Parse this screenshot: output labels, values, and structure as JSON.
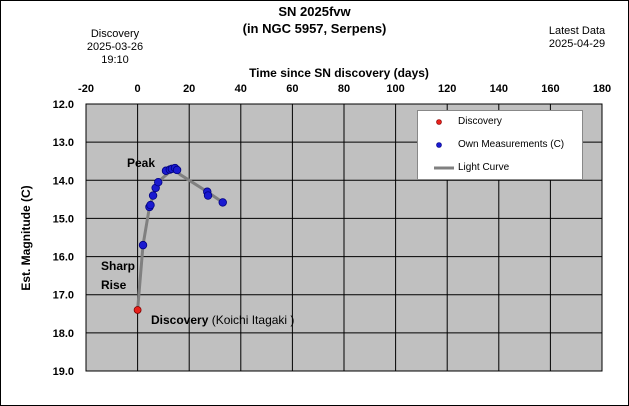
{
  "header": {
    "title_line1": "SN 2025fvw",
    "title_line2": "(in NGC 5957, Serpens)",
    "discovery_label": "Discovery",
    "discovery_date": "2025-03-26",
    "discovery_time": "19:10",
    "latest_label": "Latest Data",
    "latest_date": "2025-04-29"
  },
  "legend": {
    "discovery": "Discovery",
    "own": "Own Measurements (C)",
    "curve": "Light Curve"
  },
  "annotations": {
    "peak": "Peak",
    "sharp_rise_line1": "Sharp",
    "sharp_rise_line2": "Rise",
    "discovery_main": "Discovery",
    "discovery_sub": " (Koichi Itagaki )"
  },
  "colors": {
    "plot_bg": "#c0c0c0",
    "discovery_point": "#e8201a",
    "own_points": "#1a1ad0",
    "curve": "#808080"
  },
  "chart_data": {
    "type": "scatter",
    "title": "SN 2025fvw",
    "subtitle": "(in NGC 5957, Serpens)",
    "xlabel": "Time since SN discovery (days)",
    "ylabel": "Est. Magnitude (C)",
    "xlim": [
      -20,
      180
    ],
    "ylim": [
      12.0,
      19.0
    ],
    "y_inverted": true,
    "x_ticks": [
      -20,
      0,
      20,
      40,
      60,
      80,
      100,
      120,
      140,
      160,
      180
    ],
    "y_ticks": [
      12.0,
      13.0,
      14.0,
      15.0,
      16.0,
      17.0,
      18.0,
      19.0
    ],
    "grid": true,
    "legend_position": "top-right",
    "series": [
      {
        "name": "Discovery",
        "kind": "points",
        "x": [
          0
        ],
        "y": [
          17.4
        ]
      },
      {
        "name": "Own Measurements (C)",
        "kind": "points",
        "x": [
          2.1,
          4.6,
          5.0,
          6.0,
          7.0,
          8.0,
          11.0,
          12.5,
          13.3,
          14.5,
          15.3,
          27.0,
          27.3,
          33.0
        ],
        "y": [
          15.7,
          14.7,
          14.65,
          14.4,
          14.2,
          14.05,
          13.75,
          13.72,
          13.7,
          13.68,
          13.73,
          14.3,
          14.4,
          14.58
        ]
      },
      {
        "name": "Light Curve",
        "kind": "line",
        "x": [
          0,
          2.1,
          4.6,
          7.0,
          9.5,
          12.5,
          14.3,
          16.5,
          27.0,
          33.0
        ],
        "y": [
          17.4,
          15.7,
          14.7,
          14.2,
          13.95,
          13.78,
          13.72,
          13.85,
          14.3,
          14.58
        ]
      }
    ]
  }
}
